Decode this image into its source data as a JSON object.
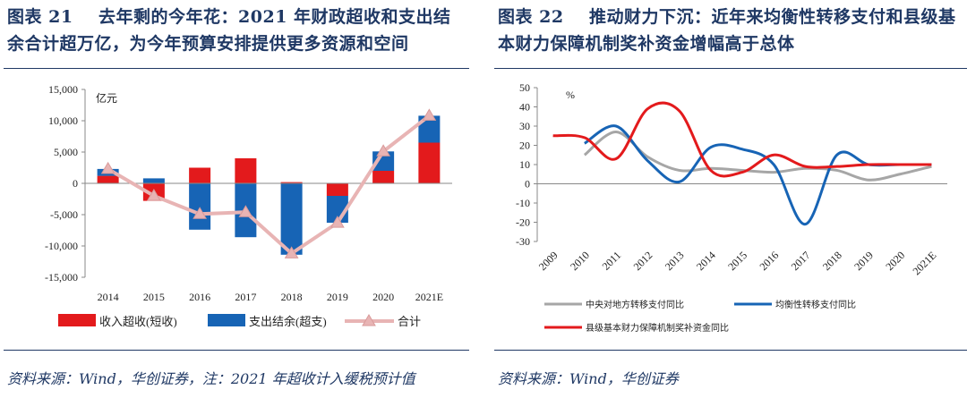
{
  "left": {
    "figure_label": "图表 21",
    "title": "去年剩的今年花：2021 年财政超收和支出结余合计超万亿，为今年预算安排提供更多资源和空间",
    "source": "资料来源：Wind，华创证券，注：2021 年超收计入缓税预计值",
    "colors": {
      "income": "#e31a1c",
      "spend": "#1764b5",
      "total": "#e8b4b4"
    }
  },
  "right": {
    "figure_label": "图表 22",
    "title": "推动财力下沉：近年来均衡性转移支付和县级基本财力保障机制奖补资金增幅高于总体",
    "source": "资料来源：Wind，华创证券",
    "colors": {
      "central": "#a6a6a6",
      "balance": "#1764b5",
      "county": "#e31a1c"
    }
  },
  "chart_data": [
    {
      "type": "bar",
      "stacked": true,
      "unit": "亿元",
      "categories": [
        "2014",
        "2015",
        "2016",
        "2017",
        "2018",
        "2019",
        "2020",
        "2021E"
      ],
      "series": [
        {
          "name": "收入超收(短收)",
          "type": "bar",
          "values": [
            1200,
            -2800,
            2500,
            4000,
            200,
            -2000,
            2000,
            6500
          ]
        },
        {
          "name": "支出结余(超支)",
          "type": "bar",
          "values": [
            1100,
            800,
            -7400,
            -8600,
            -11400,
            -4300,
            3100,
            4300
          ]
        },
        {
          "name": "合计",
          "type": "line",
          "values": [
            2300,
            -2000,
            -4900,
            -4600,
            -11200,
            -6300,
            5100,
            10800
          ]
        }
      ],
      "ylim": [
        -15000,
        15000
      ],
      "yticks": [
        15000,
        10000,
        5000,
        0,
        -5000,
        -10000,
        -15000
      ],
      "ytick_labels": [
        "15,000",
        "10,000",
        "5,000",
        "0",
        "-5,000",
        "-10,000",
        "-15,000"
      ],
      "legend": "bottom"
    },
    {
      "type": "line",
      "unit": "%",
      "categories": [
        "2009",
        "2010",
        "2011",
        "2012",
        "2013",
        "2014",
        "2015",
        "2016",
        "2017",
        "2018",
        "2019",
        "2020",
        "2021E"
      ],
      "series": [
        {
          "name": "中央对地方转移支付同比",
          "values": [
            null,
            15,
            27,
            14,
            7,
            8,
            7,
            6,
            8,
            7,
            2,
            5,
            9
          ]
        },
        {
          "name": "均衡性转移支付同比",
          "values": [
            null,
            21,
            30,
            12,
            1,
            19,
            18,
            10,
            -21,
            15,
            10,
            10,
            10
          ]
        },
        {
          "name": "县级基本财力保障机制奖补资金同比",
          "values": [
            25,
            24,
            13,
            39,
            38,
            7,
            6,
            15,
            9,
            9,
            10,
            10,
            10
          ]
        }
      ],
      "ylim": [
        -30,
        50
      ],
      "yticks": [
        50,
        40,
        30,
        20,
        10,
        0,
        -10,
        -20,
        -30
      ],
      "legend": "bottom"
    }
  ]
}
